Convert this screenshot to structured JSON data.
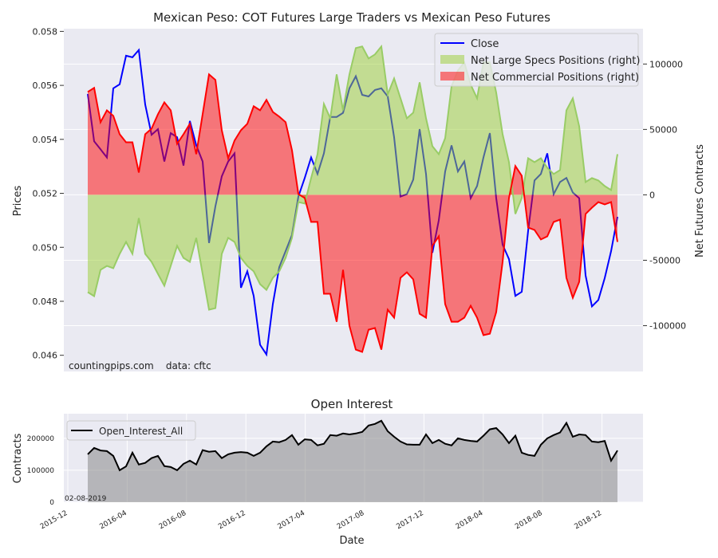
{
  "chart_data": [
    {
      "type": "line",
      "title": "Mexican Peso: COT Futures Large Traders vs Mexican Peso Futures",
      "ylabel": "Prices",
      "ylabel_right": "Net Futures Contracts",
      "ylim": [
        0.0454,
        0.0581
      ],
      "ylim_right": [
        -135000,
        127000
      ],
      "yticks": [
        "0.046",
        "0.048",
        "0.050",
        "0.052",
        "0.054",
        "0.056",
        "0.058"
      ],
      "yticks_right": [
        "100000",
        "50000",
        "0",
        "-50000",
        "-100000"
      ],
      "x_range": [
        "2016-01-05",
        "2019-02-05"
      ],
      "annotation": "countingpips.com    data: cftc",
      "legend_position": "top-right",
      "series": [
        {
          "name": "Close",
          "axis": "left",
          "color": "#0000ff",
          "values": [
            0.05568,
            0.05393,
            0.05363,
            0.05333,
            0.05589,
            0.05604,
            0.0571,
            0.05704,
            0.05731,
            0.05529,
            0.05417,
            0.05438,
            0.05318,
            0.05423,
            0.05408,
            0.05303,
            0.05468,
            0.05378,
            0.05318,
            0.05016,
            0.05152,
            0.05263,
            0.05318,
            0.05348,
            0.0485,
            0.04911,
            0.0482,
            0.04639,
            0.04603,
            0.0479,
            0.04926,
            0.04986,
            0.05046,
            0.05188,
            0.05257,
            0.05333,
            0.05272,
            0.05348,
            0.05483,
            0.05483,
            0.05498,
            0.05589,
            0.05634,
            0.05565,
            0.05559,
            0.05583,
            0.05589,
            0.05559,
            0.05408,
            0.05188,
            0.05197,
            0.05251,
            0.05438,
            0.05272,
            0.0498,
            0.051,
            0.05281,
            0.05378,
            0.05281,
            0.05318,
            0.05182,
            0.05227,
            0.05333,
            0.05423,
            0.05182,
            0.0501,
            0.04956,
            0.0482,
            0.04835,
            0.05061,
            0.05248,
            0.05272,
            0.05348,
            0.05197,
            0.05242,
            0.05257,
            0.05203,
            0.05182,
            0.04896,
            0.04781,
            0.04805,
            0.04886,
            0.04986,
            0.05113
          ]
        },
        {
          "name": "Net Large Specs Positions (right)",
          "axis": "right",
          "color": "#99cc66",
          "values": [
            -74400,
            -77400,
            -57300,
            -54300,
            -56100,
            -45100,
            -36000,
            -45100,
            -17700,
            -45100,
            -51200,
            -60400,
            -69500,
            -54300,
            -39000,
            -48200,
            -51200,
            -32900,
            -60400,
            -87800,
            -86600,
            -45100,
            -32900,
            -36000,
            -48200,
            -54300,
            -58500,
            -68300,
            -72600,
            -63400,
            -58500,
            -48200,
            -32900,
            -5500,
            -6700,
            12800,
            31100,
            69500,
            58500,
            92100,
            64600,
            92100,
            112200,
            113400,
            104300,
            107300,
            113400,
            76800,
            89000,
            73800,
            58500,
            62800,
            86000,
            58500,
            37200,
            31100,
            43300,
            82900,
            95100,
            101200,
            84200,
            73800,
            101200,
            101200,
            78100,
            46300,
            25000,
            -14600,
            -2400,
            28000,
            25000,
            28000,
            20700,
            15900,
            18900,
            64600,
            73800,
            52400,
            9800,
            12800,
            11000,
            6700,
            3700,
            31100
          ]
        },
        {
          "name": "Net Commercial Positions (right)",
          "axis": "right",
          "color": "#ff0000",
          "values": [
            78700,
            81700,
            55500,
            64600,
            60400,
            46300,
            40200,
            40200,
            17100,
            46300,
            50600,
            61600,
            70700,
            64600,
            39000,
            46300,
            54300,
            31100,
            61600,
            92100,
            87800,
            49400,
            28000,
            41500,
            49400,
            54300,
            67700,
            64600,
            72600,
            63400,
            59800,
            55500,
            34100,
            600,
            -2400,
            -20700,
            -20700,
            -75600,
            -75600,
            -97000,
            -57300,
            -100000,
            -118300,
            -120100,
            -103100,
            -101800,
            -118300,
            -87800,
            -93900,
            -63400,
            -59200,
            -64600,
            -90900,
            -93900,
            -39000,
            -31700,
            -83500,
            -97000,
            -97000,
            -93900,
            -84800,
            -93900,
            -107300,
            -106100,
            -89600,
            -51200,
            -2400,
            22000,
            14600,
            -25000,
            -26800,
            -34100,
            -31700,
            -20700,
            -18900,
            -63400,
            -78700,
            -66500,
            -14600,
            -9800,
            -5500,
            -7300,
            -5500,
            -36000
          ]
        }
      ]
    },
    {
      "type": "area",
      "title": "Open Interest",
      "xlabel": "Date",
      "ylabel": "Contracts",
      "ylim": [
        0,
        277000
      ],
      "yticks": [
        "0",
        "100000",
        "200000"
      ],
      "xticks": [
        "2015-12",
        "2016-04",
        "2016-08",
        "2016-12",
        "2017-04",
        "2017-08",
        "2017-12",
        "2018-04",
        "2018-08",
        "2018-12"
      ],
      "x_range": [
        "2016-01-05",
        "2019-02-05"
      ],
      "annotation": "02-08-2019",
      "legend_position": "top-left",
      "series": [
        {
          "name": "Open_Interest_All",
          "color": "#000000",
          "values": [
            150000,
            170000,
            162000,
            160000,
            145000,
            100000,
            112000,
            155000,
            118000,
            123000,
            138000,
            145000,
            113000,
            110000,
            100000,
            120000,
            130000,
            118000,
            163000,
            158000,
            160000,
            138000,
            150000,
            155000,
            157000,
            155000,
            145000,
            155000,
            175000,
            190000,
            188000,
            195000,
            210000,
            180000,
            197000,
            195000,
            178000,
            183000,
            210000,
            208000,
            215000,
            212000,
            215000,
            220000,
            240000,
            245000,
            255000,
            222000,
            205000,
            190000,
            181000,
            180000,
            180000,
            212000,
            185000,
            195000,
            183000,
            178000,
            200000,
            195000,
            192000,
            190000,
            208000,
            228000,
            232000,
            212000,
            185000,
            208000,
            155000,
            148000,
            145000,
            180000,
            200000,
            210000,
            218000,
            248000,
            205000,
            212000,
            210000,
            190000,
            188000,
            192000,
            130000,
            162000
          ]
        }
      ]
    }
  ]
}
